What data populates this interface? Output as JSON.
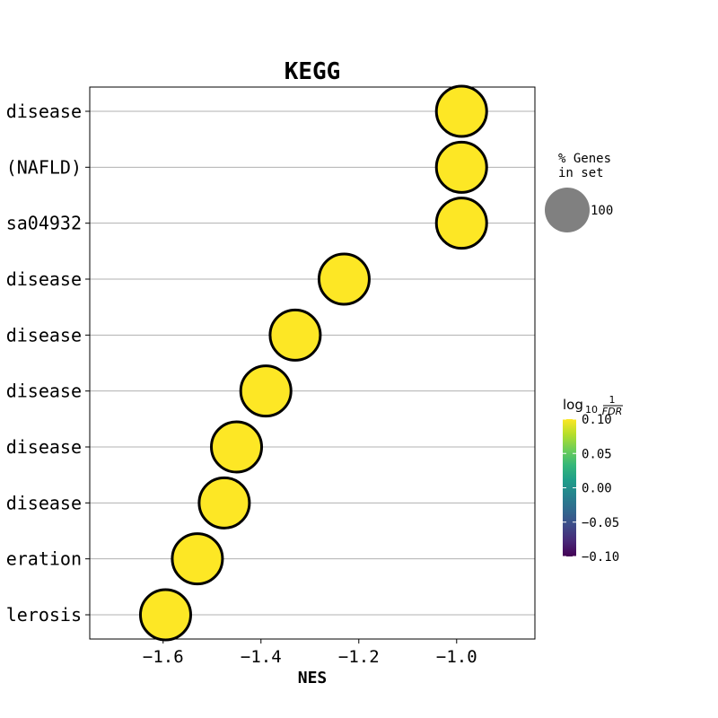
{
  "chart_data": {
    "type": "scatter",
    "title": "KEGG",
    "xlabel": "NES",
    "xlim": [
      -1.75,
      -0.84
    ],
    "xticks": [
      -1.6,
      -1.4,
      -1.2,
      -1.0
    ],
    "xtick_labels": [
      "−1.6",
      "−1.4",
      "−1.2",
      "−1.0"
    ],
    "grid": "horizontal",
    "categories": [
      "disease",
      "(NAFLD)",
      "sa04932",
      "disease",
      "disease",
      "disease",
      "disease",
      "disease",
      "eration",
      "lerosis"
    ],
    "nes": [
      -0.99,
      -0.99,
      -0.99,
      -1.23,
      -1.33,
      -1.39,
      -1.45,
      -1.475,
      -1.53,
      -1.595
    ],
    "point_color": "#fde725",
    "point_edge": "#000000",
    "size_legend": {
      "title_line1": "% Genes",
      "title_line2": "in set",
      "value_label": "100",
      "marker_color": "#808080"
    },
    "colorbar": {
      "label_main": "log",
      "label_sub": "10",
      "label_num": "1",
      "label_den": "FDR",
      "range": [
        -0.1,
        0.1
      ],
      "ticks": [
        0.1,
        0.05,
        0.0,
        -0.05,
        -0.1
      ],
      "tick_labels": [
        "0.10",
        "0.05",
        "0.00",
        "−0.05",
        "−0.10"
      ],
      "colormap": [
        "#440154",
        "#482878",
        "#3e4a89",
        "#31688e",
        "#26828e",
        "#1f9e89",
        "#35b779",
        "#6ece58",
        "#b5de2b",
        "#fde725"
      ]
    }
  }
}
